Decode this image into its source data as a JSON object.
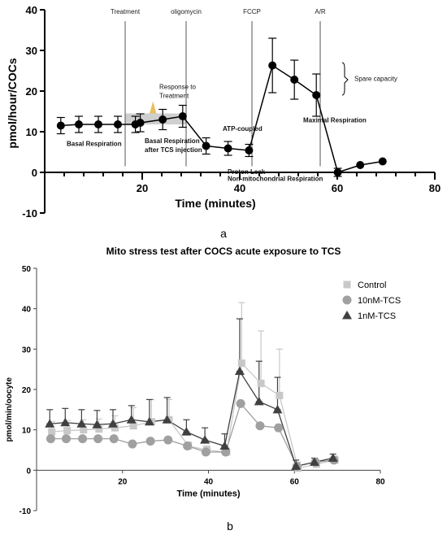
{
  "panel_labels": [
    "a",
    "b"
  ],
  "colors": {
    "control": "#c8c8c8",
    "tcs10": "#a0a0a0",
    "tcs1": "#404040",
    "black": "#000000",
    "shade": "#cfcfcf"
  },
  "chart_data": [
    {
      "type": "line",
      "title": "",
      "xlabel": "Time (minutes)",
      "ylabel": "pmol/hour/COCs",
      "xlim": [
        0,
        80
      ],
      "ylim": [
        -10,
        40
      ],
      "x_ticks": [
        20,
        40,
        60,
        80
      ],
      "y_ticks": [
        -10,
        0,
        10,
        20,
        30,
        40
      ],
      "series": [
        {
          "color": "#000000",
          "points": [
            {
              "x": 3.3,
              "y": 11.5,
              "err": 2.0
            },
            {
              "x": 7.0,
              "y": 11.8,
              "err": 2.0
            },
            {
              "x": 11.0,
              "y": 11.8,
              "err": 2.0
            },
            {
              "x": 15.0,
              "y": 11.8,
              "err": 2.0
            },
            {
              "x": 18.6,
              "y": 11.8,
              "err": 2.0
            },
            {
              "x": 19.6,
              "y": 12.2,
              "err": 2.2
            },
            {
              "x": 24.2,
              "y": 13.0,
              "err": 2.5
            },
            {
              "x": 28.3,
              "y": 13.8,
              "err": 2.7
            },
            {
              "x": 33.1,
              "y": 6.5,
              "err": 2.0
            },
            {
              "x": 37.6,
              "y": 5.9,
              "err": 1.7
            },
            {
              "x": 41.9,
              "y": 5.4,
              "err": 1.5
            },
            {
              "x": 46.7,
              "y": 26.3,
              "err": 6.7
            },
            {
              "x": 51.2,
              "y": 22.8,
              "err": 4.8
            },
            {
              "x": 55.7,
              "y": 19.0,
              "err": 5.2
            },
            {
              "x": 60.1,
              "y": 0.0,
              "err": 1.0
            },
            {
              "x": 64.7,
              "y": 1.8,
              "err": 0
            },
            {
              "x": 69.3,
              "y": 2.7,
              "err": 0
            }
          ]
        }
      ],
      "event_lines": [
        {
          "x": 16.5,
          "label": "Treatment"
        },
        {
          "x": 29.0,
          "label": "oligomycin"
        },
        {
          "x": 42.5,
          "label": "FCCP"
        },
        {
          "x": 56.5,
          "label": "A/R"
        }
      ],
      "annotations": [
        {
          "text": "Basal Respiration",
          "x": 4.5,
          "y": 6.5
        },
        {
          "text": "Basal Respiration",
          "x": 20.5,
          "y": 7.2
        },
        {
          "text": "after TCS injection",
          "x": 20.5,
          "y": 5.0
        },
        {
          "text": "Response to",
          "x": 23.5,
          "y": 20.5
        },
        {
          "text": "Treatment",
          "x": 23.5,
          "y": 18.3
        },
        {
          "text": "ATP-coupled",
          "x": 36.5,
          "y": 10.2
        },
        {
          "text": "Proton Leak",
          "x": 37.5,
          "y": -0.4
        },
        {
          "text": "Non-mitochondrial Respiration",
          "x": 37.5,
          "y": -2.1
        },
        {
          "text": "Maximal Respiration",
          "x": 53.0,
          "y": 12.3
        },
        {
          "text": "Spare capacity",
          "x": 63.5,
          "y": 22.5
        }
      ],
      "shaded_region": {
        "x": [
          16.5,
          29.0
        ],
        "y": [
          11.8,
          14.5
        ]
      }
    },
    {
      "type": "line",
      "title": "Mito stress test after COCS acute exposure to TCS",
      "xlabel": "Time (minutes)",
      "ylabel": "pmol/min/oocyte",
      "xlim": [
        0,
        80
      ],
      "ylim": [
        -10,
        50
      ],
      "x_ticks": [
        20,
        40,
        60,
        80
      ],
      "y_ticks": [
        -10,
        0,
        10,
        20,
        30,
        40,
        50
      ],
      "legend_position": "top-right",
      "x": [
        3.3,
        6.9,
        10.7,
        14.3,
        18.0,
        22.3,
        26.5,
        30.6,
        35.1,
        39.4,
        44.0,
        47.5,
        52.0,
        56.3,
        60.6,
        64.9,
        69.2
      ],
      "series": [
        {
          "name": "Control",
          "marker": "square",
          "color": "#c8c8c8",
          "values": [
            9.5,
            9.8,
            10.0,
            10.2,
            10.5,
            11.0,
            12.0,
            12.5,
            6.0,
            5.0,
            4.5,
            26.5,
            21.5,
            18.5,
            0.5,
            1.5,
            2.5
          ],
          "errors": [
            2.5,
            2.5,
            2.5,
            2.5,
            3.0,
            4.5,
            5.5,
            5.0,
            1.0,
            1.0,
            1.0,
            15.0,
            13.0,
            11.5,
            1.5,
            1.0,
            1.0
          ]
        },
        {
          "name": "10nM-TCS",
          "marker": "circle",
          "color": "#a0a0a0",
          "values": [
            7.8,
            7.8,
            7.8,
            7.8,
            7.8,
            6.5,
            7.2,
            7.5,
            6.0,
            4.5,
            4.5,
            16.5,
            11.0,
            10.5,
            1.0,
            2.0,
            2.5
          ],
          "errors": [
            0,
            0,
            0,
            0,
            0,
            0,
            0,
            0,
            0,
            0,
            0,
            0,
            0,
            0,
            0,
            0,
            0
          ]
        },
        {
          "name": "1nM-TCS",
          "marker": "triangle",
          "color": "#404040",
          "values": [
            11.5,
            11.8,
            11.5,
            11.3,
            11.5,
            12.5,
            12.0,
            12.5,
            9.5,
            7.5,
            6.0,
            24.5,
            17.0,
            15.0,
            1.0,
            2.0,
            3.0
          ],
          "errors": [
            3.5,
            3.5,
            3.5,
            3.5,
            3.5,
            3.5,
            5.5,
            5.5,
            3.0,
            3.0,
            3.0,
            13.0,
            10.0,
            8.0,
            1.5,
            1.0,
            1.0
          ]
        }
      ]
    }
  ]
}
